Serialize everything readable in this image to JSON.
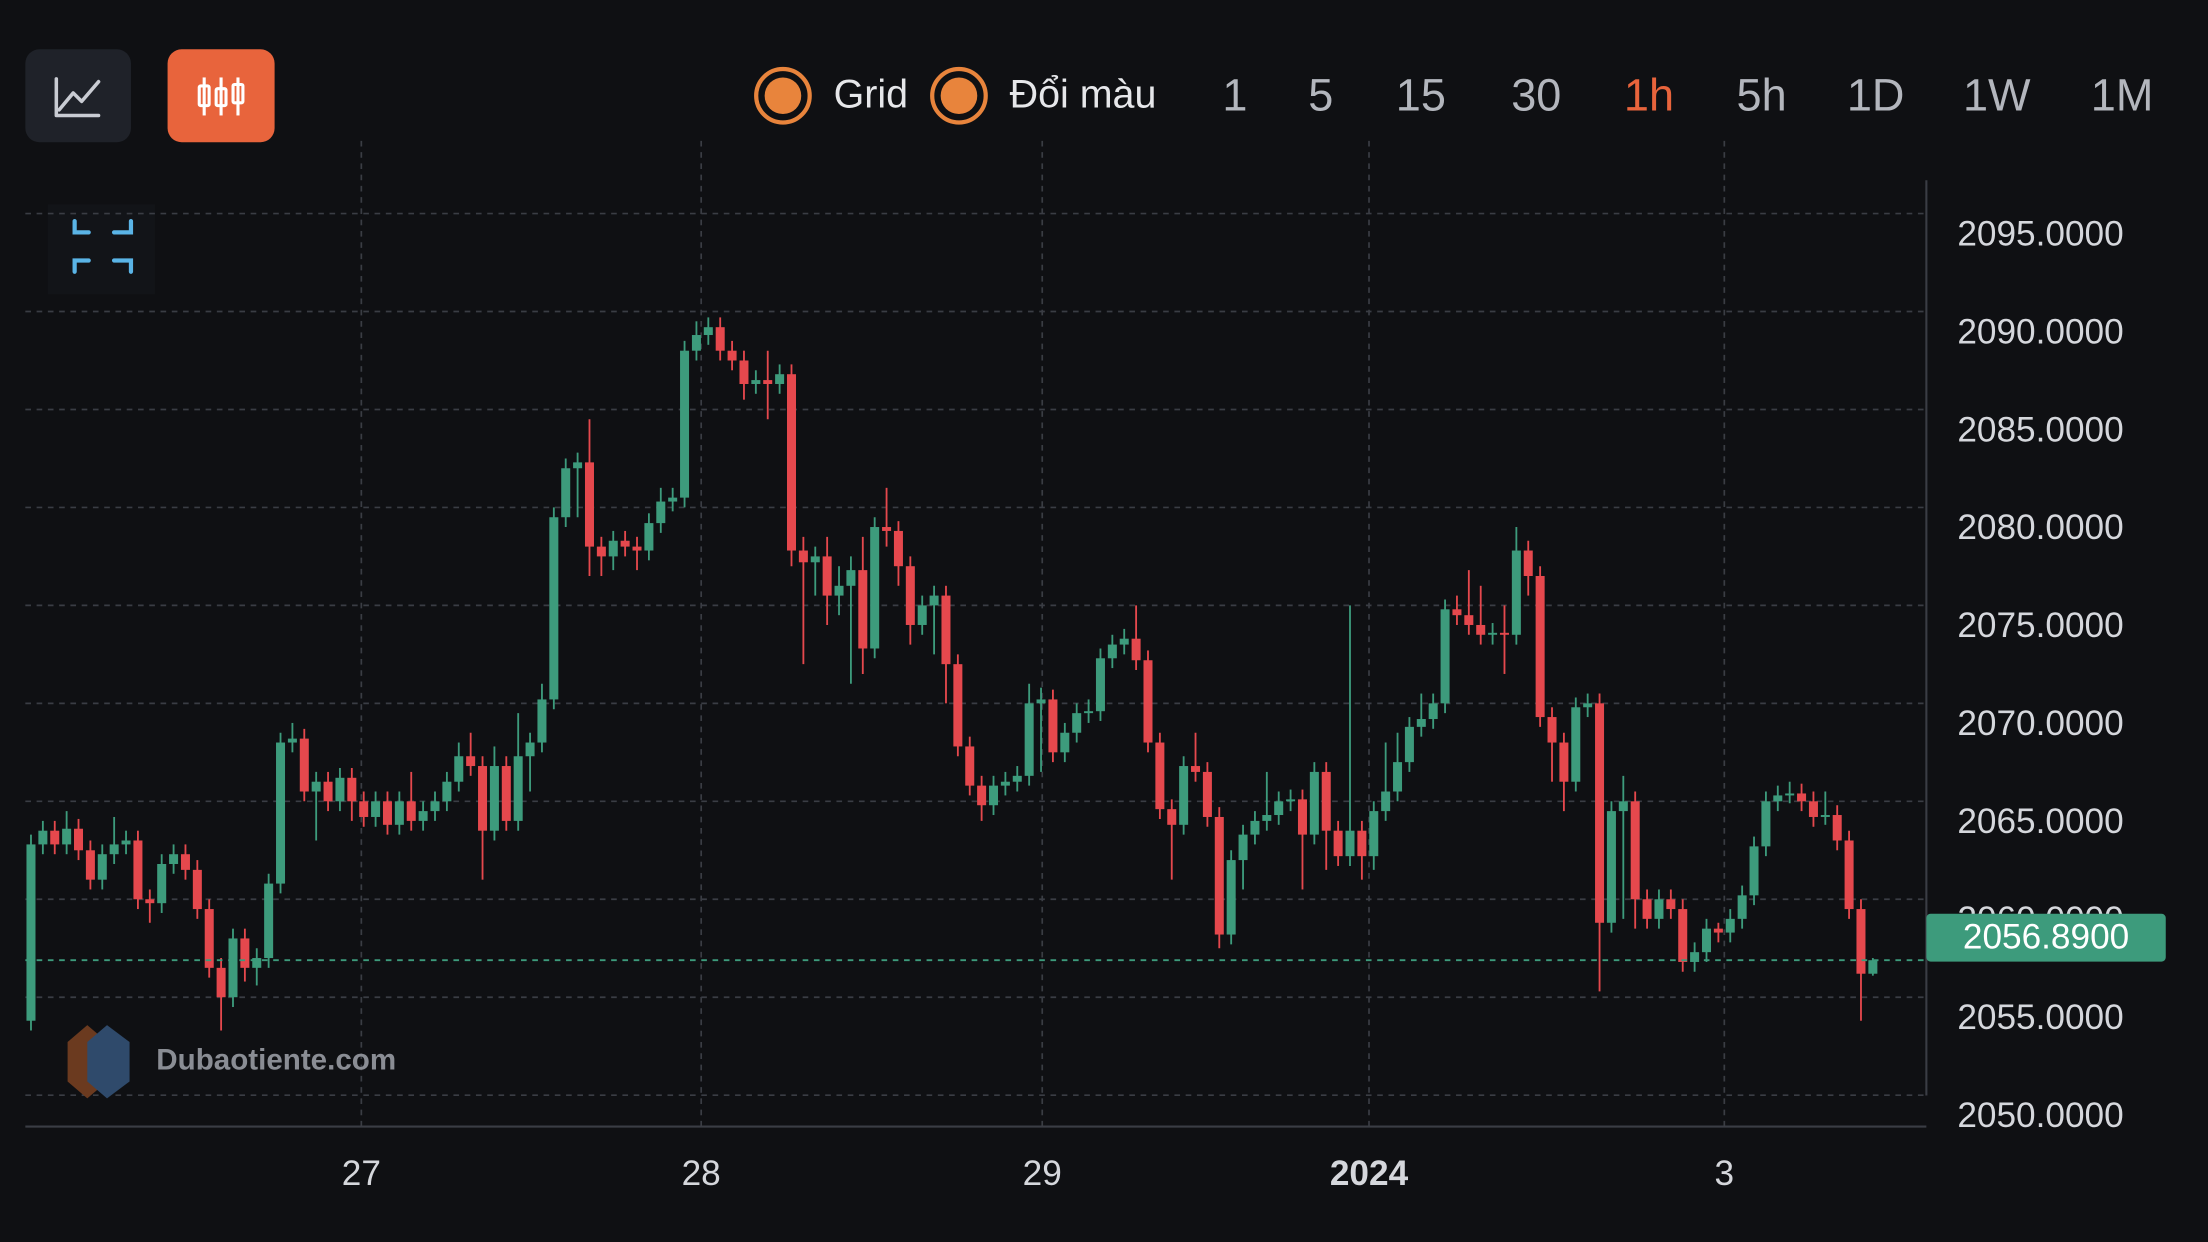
{
  "ui": {
    "toggles": [
      "Grid",
      "Đổi màu"
    ],
    "timeframes": [
      "1",
      "5",
      "15",
      "30",
      "1h",
      "5h",
      "1D",
      "1W",
      "1M"
    ],
    "active_timeframe": "1h",
    "watermark": "Dubaotiente.com"
  },
  "chart_data": {
    "type": "candlestick",
    "up_color": "#3d9b7c",
    "down_color": "#e5484d",
    "grid": true,
    "ylim": [
      2048.4,
      2096.7
    ],
    "yticks": [
      {
        "value": 2050,
        "label": "2050.0000"
      },
      {
        "value": 2055,
        "label": "2055.0000"
      },
      {
        "value": 2060,
        "label": "2060.0000"
      },
      {
        "value": 2065,
        "label": "2065.0000"
      },
      {
        "value": 2070,
        "label": "2070.0000"
      },
      {
        "value": 2075,
        "label": "2075.0000"
      },
      {
        "value": 2080,
        "label": "2080.0000"
      },
      {
        "value": 2085,
        "label": "2085.0000"
      },
      {
        "value": 2090,
        "label": "2090.0000"
      },
      {
        "value": 2095,
        "label": "2095.0000"
      }
    ],
    "xlim": [
      0,
      155
    ],
    "xticks": [
      {
        "value": 27.8,
        "label": "27"
      },
      {
        "value": 56.4,
        "label": "28"
      },
      {
        "value": 85.1,
        "label": "29"
      },
      {
        "value": 112.6,
        "label": "2024"
      },
      {
        "value": 142.5,
        "label": "3"
      }
    ],
    "last_price": {
      "value": 2056.89,
      "label": "2056.8900"
    },
    "open": [
      2053.8,
      2062.8,
      2063.5,
      2062.8,
      2063.6,
      2062.5,
      2061.0,
      2062.3,
      2062.8,
      2063.0,
      2060.0,
      2059.8,
      2061.8,
      2062.3,
      2061.5,
      2059.5,
      2056.5,
      2055.0,
      2058.0,
      2056.5,
      2057.0,
      2060.8,
      2068.0,
      2068.2,
      2065.5,
      2066.0,
      2065.0,
      2066.2,
      2065.0,
      2064.2,
      2065.0,
      2063.8,
      2065.0,
      2064.0,
      2064.5,
      2065.0,
      2066.0,
      2067.3,
      2066.8,
      2063.5,
      2066.8,
      2064.0,
      2067.3,
      2068.0,
      2070.2,
      2079.5,
      2082.0,
      2082.3,
      2078.0,
      2077.5,
      2078.3,
      2078.0,
      2077.8,
      2079.2,
      2080.3,
      2080.5,
      2088.0,
      2088.8,
      2089.2,
      2088.0,
      2087.5,
      2086.3,
      2086.5,
      2086.3,
      2086.8,
      2077.8,
      2077.2,
      2077.5,
      2075.5,
      2076.0,
      2076.8,
      2072.8,
      2079.0,
      2078.8,
      2077.0,
      2074.0,
      2075.0,
      2075.5,
      2072.0,
      2067.8,
      2065.8,
      2064.8,
      2065.8,
      2066.0,
      2066.3,
      2070.0,
      2070.2,
      2067.5,
      2068.5,
      2069.5,
      2069.6,
      2072.3,
      2073.0,
      2073.3,
      2072.2,
      2068.0,
      2064.6,
      2063.8,
      2066.8,
      2066.5,
      2064.2,
      2058.2,
      2062.0,
      2063.3,
      2064.0,
      2064.3,
      2065.0,
      2065.1,
      2063.3,
      2066.5,
      2063.5,
      2062.2,
      2063.5,
      2062.2,
      2064.5,
      2065.5,
      2067.0,
      2068.8,
      2069.2,
      2070.0,
      2074.8,
      2074.5,
      2074.0,
      2073.5,
      2073.6,
      2073.5,
      2077.8,
      2076.5,
      2069.3,
      2068.0,
      2066.0,
      2069.8,
      2070.0,
      2058.8,
      2064.5,
      2065.0,
      2060.0,
      2059.0,
      2060.0,
      2059.5,
      2056.8,
      2057.3,
      2058.5,
      2058.3,
      2059.0,
      2060.2,
      2062.7,
      2065.0,
      2065.3,
      2065.4,
      2065.0,
      2064.2,
      2064.3,
      2063.0,
      2059.5,
      2056.2
    ],
    "high": [
      2063.3,
      2064.0,
      2064.0,
      2064.5,
      2064.1,
      2063.0,
      2062.8,
      2064.2,
      2063.5,
      2063.5,
      2060.5,
      2062.3,
      2062.8,
      2062.8,
      2062.0,
      2060.0,
      2057.0,
      2058.5,
      2058.5,
      2057.5,
      2061.3,
      2068.5,
      2069.0,
      2068.7,
      2066.5,
      2066.5,
      2066.7,
      2066.7,
      2065.5,
      2065.5,
      2065.5,
      2065.5,
      2066.5,
      2065.0,
      2065.5,
      2066.5,
      2068.0,
      2068.5,
      2067.3,
      2067.8,
      2067.3,
      2069.5,
      2068.5,
      2071.0,
      2080.0,
      2082.5,
      2082.8,
      2084.5,
      2078.5,
      2078.8,
      2078.8,
      2078.5,
      2079.7,
      2081.0,
      2081.0,
      2088.5,
      2089.5,
      2089.7,
      2089.7,
      2088.5,
      2088.0,
      2087.0,
      2088.0,
      2087.3,
      2087.3,
      2078.5,
      2078.0,
      2078.5,
      2077.0,
      2077.5,
      2078.5,
      2079.5,
      2081.0,
      2079.3,
      2077.5,
      2075.5,
      2076.0,
      2076.0,
      2072.5,
      2068.3,
      2066.3,
      2066.3,
      2066.5,
      2066.8,
      2071.0,
      2070.8,
      2070.7,
      2069.0,
      2070.0,
      2070.2,
      2072.8,
      2073.5,
      2073.8,
      2075.0,
      2072.7,
      2068.5,
      2065.1,
      2067.3,
      2068.5,
      2067.0,
      2064.7,
      2062.5,
      2063.8,
      2064.5,
      2066.5,
      2065.5,
      2065.6,
      2065.6,
      2067.0,
      2067.0,
      2064.0,
      2075.0,
      2064.0,
      2065.0,
      2068.0,
      2068.5,
      2069.3,
      2070.5,
      2070.5,
      2075.3,
      2075.5,
      2076.8,
      2076.0,
      2074.1,
      2075.0,
      2079.0,
      2078.3,
      2077.0,
      2069.8,
      2068.5,
      2070.3,
      2070.5,
      2070.5,
      2065.0,
      2066.3,
      2065.5,
      2060.5,
      2060.5,
      2060.5,
      2060.0,
      2057.8,
      2059.0,
      2058.8,
      2059.5,
      2060.7,
      2063.2,
      2065.5,
      2065.8,
      2066.0,
      2065.9,
      2065.5,
      2065.5,
      2064.8,
      2063.5,
      2060.0,
      2057.0
    ],
    "low": [
      2053.3,
      2062.3,
      2062.3,
      2062.3,
      2062.0,
      2060.5,
      2060.5,
      2061.8,
      2062.3,
      2059.5,
      2058.8,
      2059.3,
      2061.3,
      2061.0,
      2059.0,
      2056.0,
      2053.3,
      2054.5,
      2055.8,
      2055.6,
      2056.5,
      2060.3,
      2067.5,
      2065.0,
      2063.0,
      2064.5,
      2064.5,
      2064.0,
      2063.7,
      2063.7,
      2063.3,
      2063.3,
      2063.5,
      2063.5,
      2064.0,
      2064.5,
      2065.5,
      2066.3,
      2061.0,
      2063.0,
      2063.5,
      2063.5,
      2065.5,
      2067.5,
      2069.7,
      2079.0,
      2079.5,
      2076.5,
      2076.5,
      2076.8,
      2077.5,
      2076.8,
      2077.3,
      2078.7,
      2079.8,
      2080.0,
      2087.5,
      2088.3,
      2087.5,
      2087.0,
      2085.5,
      2085.8,
      2084.5,
      2085.8,
      2077.0,
      2072.0,
      2075.5,
      2074.0,
      2074.5,
      2071.0,
      2071.5,
      2072.3,
      2078.0,
      2076.0,
      2073.0,
      2073.5,
      2072.5,
      2070.0,
      2067.3,
      2065.3,
      2064.0,
      2064.3,
      2065.3,
      2065.5,
      2065.8,
      2066.5,
      2067.0,
      2067.0,
      2068.0,
      2069.0,
      2069.1,
      2071.8,
      2072.5,
      2071.7,
      2067.5,
      2064.1,
      2061.0,
      2063.3,
      2066.0,
      2063.7,
      2057.5,
      2057.7,
      2060.5,
      2062.8,
      2063.5,
      2063.8,
      2064.5,
      2060.5,
      2062.8,
      2061.5,
      2061.7,
      2061.7,
      2061.0,
      2061.5,
      2064.0,
      2065.0,
      2066.5,
      2068.3,
      2068.7,
      2069.5,
      2074.0,
      2073.5,
      2073.0,
      2073.0,
      2071.5,
      2073.0,
      2075.5,
      2068.8,
      2066.0,
      2064.5,
      2065.5,
      2069.3,
      2055.3,
      2058.3,
      2059.0,
      2058.5,
      2058.5,
      2058.5,
      2059.0,
      2056.3,
      2056.3,
      2056.8,
      2057.8,
      2057.8,
      2058.5,
      2059.7,
      2062.2,
      2064.5,
      2064.9,
      2064.5,
      2063.7,
      2063.8,
      2062.5,
      2059.0,
      2053.8,
      2056.1
    ],
    "close": [
      2062.8,
      2063.5,
      2062.8,
      2063.6,
      2062.5,
      2061.0,
      2062.3,
      2062.8,
      2063.0,
      2060.0,
      2059.8,
      2061.8,
      2062.3,
      2061.5,
      2059.5,
      2056.5,
      2055.0,
      2058.0,
      2056.5,
      2057.0,
      2060.8,
      2068.0,
      2068.2,
      2065.5,
      2066.0,
      2065.0,
      2066.2,
      2065.0,
      2064.2,
      2065.0,
      2063.8,
      2065.0,
      2064.0,
      2064.5,
      2065.0,
      2066.0,
      2067.3,
      2066.8,
      2063.5,
      2066.8,
      2064.0,
      2067.3,
      2068.0,
      2070.2,
      2079.5,
      2082.0,
      2082.3,
      2078.0,
      2077.5,
      2078.3,
      2078.0,
      2077.8,
      2079.2,
      2080.3,
      2080.5,
      2088.0,
      2088.8,
      2089.2,
      2088.0,
      2087.5,
      2086.3,
      2086.5,
      2086.3,
      2086.8,
      2077.8,
      2077.2,
      2077.5,
      2075.5,
      2076.0,
      2076.8,
      2072.8,
      2079.0,
      2078.8,
      2077.0,
      2074.0,
      2075.0,
      2075.5,
      2072.0,
      2067.8,
      2065.8,
      2064.8,
      2065.8,
      2066.0,
      2066.3,
      2070.0,
      2070.2,
      2067.5,
      2068.5,
      2069.5,
      2069.6,
      2072.3,
      2073.0,
      2073.3,
      2072.2,
      2068.0,
      2064.6,
      2063.8,
      2066.8,
      2066.5,
      2064.2,
      2058.2,
      2062.0,
      2063.3,
      2064.0,
      2064.3,
      2065.0,
      2065.1,
      2063.3,
      2066.5,
      2063.5,
      2062.2,
      2063.5,
      2062.2,
      2064.5,
      2065.5,
      2067.0,
      2068.8,
      2069.2,
      2070.0,
      2074.8,
      2074.5,
      2074.0,
      2073.5,
      2073.6,
      2073.5,
      2077.8,
      2076.5,
      2069.3,
      2068.0,
      2066.0,
      2069.8,
      2070.0,
      2058.8,
      2064.5,
      2065.0,
      2060.0,
      2059.0,
      2060.0,
      2059.5,
      2056.8,
      2057.3,
      2058.5,
      2058.3,
      2059.0,
      2060.2,
      2062.7,
      2065.0,
      2065.3,
      2065.4,
      2065.0,
      2064.2,
      2064.3,
      2063.0,
      2059.5,
      2056.2,
      2056.89
    ]
  }
}
